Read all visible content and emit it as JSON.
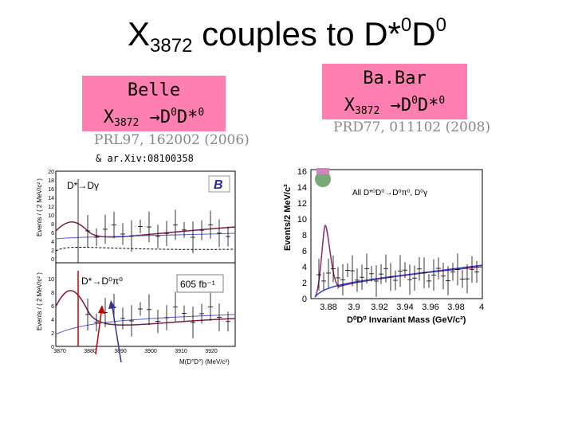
{
  "slide": {
    "title": {
      "main": "X",
      "sub": "3872",
      "mid": " couples to D*",
      "sup1": "0",
      "tail": "D",
      "sup2": "0"
    }
  },
  "belle": {
    "label_line1": "Belle",
    "label_x": "X",
    "label_sub": "3872",
    "label_arrow": "→",
    "label_d0": "D",
    "label_d0_sup": "0",
    "label_dstar": "D*",
    "label_dstar_sup": "0",
    "ref": "PRL97, 162002 (2006)",
    "arxiv": "& ar.Xiv:08100358",
    "ylabel": "Events / ( 2 MeV/c² )",
    "xlabel": "M(D°D°) (MeV/c²)",
    "top_channel": "D*→Dγ",
    "bottom_channel": "D*→D⁰π⁰",
    "lumi": "605 fb⁻¹",
    "top_yticks": [
      "20",
      "18",
      "16",
      "14",
      "12",
      "10",
      "8",
      "6",
      "4",
      "2",
      "0"
    ],
    "bottom_yticks": [
      "10",
      "8",
      "6",
      "4",
      "2",
      "0"
    ],
    "xticks": [
      "3870",
      "3880",
      "3890",
      "3900",
      "3910",
      "3920"
    ]
  },
  "babar": {
    "label_line1": "Ba.Bar",
    "label_x": "X",
    "label_sub": "3872",
    "label_arrow": "→",
    "label_d0": "D",
    "label_d0_sup": "0",
    "label_dstar": "D*",
    "label_dstar_sup": "0",
    "ref": "PRD77, 011102 (2008)",
    "ylabel": "Events/2 MeV/c²",
    "xlabel": "D⁰D⁰ Invariant Mass (GeV/c²)",
    "legend": "All D*⁰D⁰→D⁰π⁰, D⁰γ",
    "yticks": [
      "16",
      "14",
      "12",
      "10",
      "8",
      "6",
      "4",
      "2",
      "0"
    ],
    "xticks": [
      "3.88",
      "3.9",
      "3.92",
      "3.94",
      "3.96",
      "3.98",
      "4"
    ]
  }
}
